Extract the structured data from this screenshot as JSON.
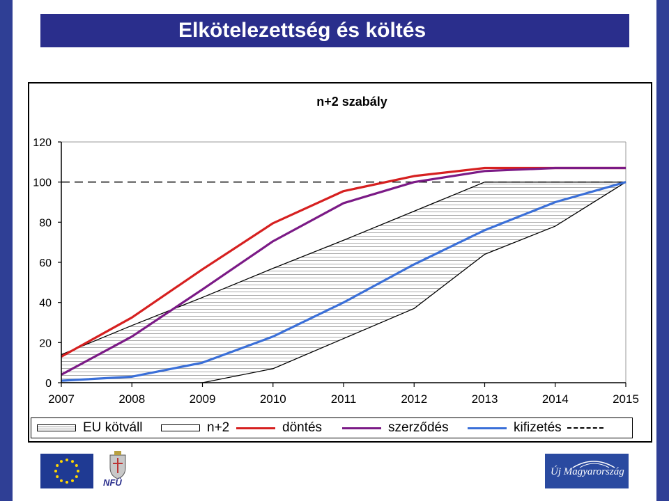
{
  "slide": {
    "title": "Elkötelezettség és költés",
    "colors": {
      "frame": "#2f3f95",
      "title_bar": "#2a2e8c"
    }
  },
  "chart_data": {
    "type": "line",
    "title": "n+2 szabály",
    "x": [
      "2007",
      "2008",
      "2009",
      "2010",
      "2011",
      "2012",
      "2013",
      "2014",
      "2015"
    ],
    "ylim": [
      0,
      120
    ],
    "yticks": [
      0,
      20,
      40,
      60,
      80,
      100,
      120
    ],
    "grid": false,
    "legend_position": "bottom",
    "band": {
      "legend_label": "EU kötváll",
      "upper": [
        14,
        28.5,
        42.5,
        57,
        71,
        85.5,
        100,
        100,
        100
      ],
      "lower": [
        null,
        null,
        0,
        7,
        22,
        37,
        64,
        78,
        100
      ],
      "lower_legend_label": "n+2",
      "fill": "hatched"
    },
    "series": [
      {
        "name": "döntés",
        "color": "#d62020",
        "values": [
          13,
          32.5,
          56.5,
          79.5,
          95.5,
          103,
          107,
          107,
          107
        ]
      },
      {
        "name": "szerződés",
        "color": "#7b1a86",
        "values": [
          4,
          23,
          46.5,
          70.5,
          89.5,
          100,
          105.5,
          107,
          107
        ]
      },
      {
        "name": "kifizetés",
        "color": "#3a6fd8",
        "values": [
          1,
          3,
          10,
          23,
          40,
          59,
          76,
          90,
          100
        ]
      }
    ],
    "reference_line": {
      "y": 100,
      "style": "dashed"
    }
  },
  "legend": {
    "items": [
      {
        "label": "EU kötváll",
        "marker": "hatched-box"
      },
      {
        "label": "n+2",
        "marker": "plain-box"
      },
      {
        "label": "döntés",
        "marker": "line",
        "color": "#d62020"
      },
      {
        "label": "szerződés",
        "marker": "line",
        "color": "#7b1a86"
      },
      {
        "label": "kifizetés",
        "marker": "line",
        "color": "#3a6fd8"
      }
    ]
  },
  "logos": {
    "nfu_text": "NFÜ",
    "umt_text": "Új Magyarország"
  }
}
